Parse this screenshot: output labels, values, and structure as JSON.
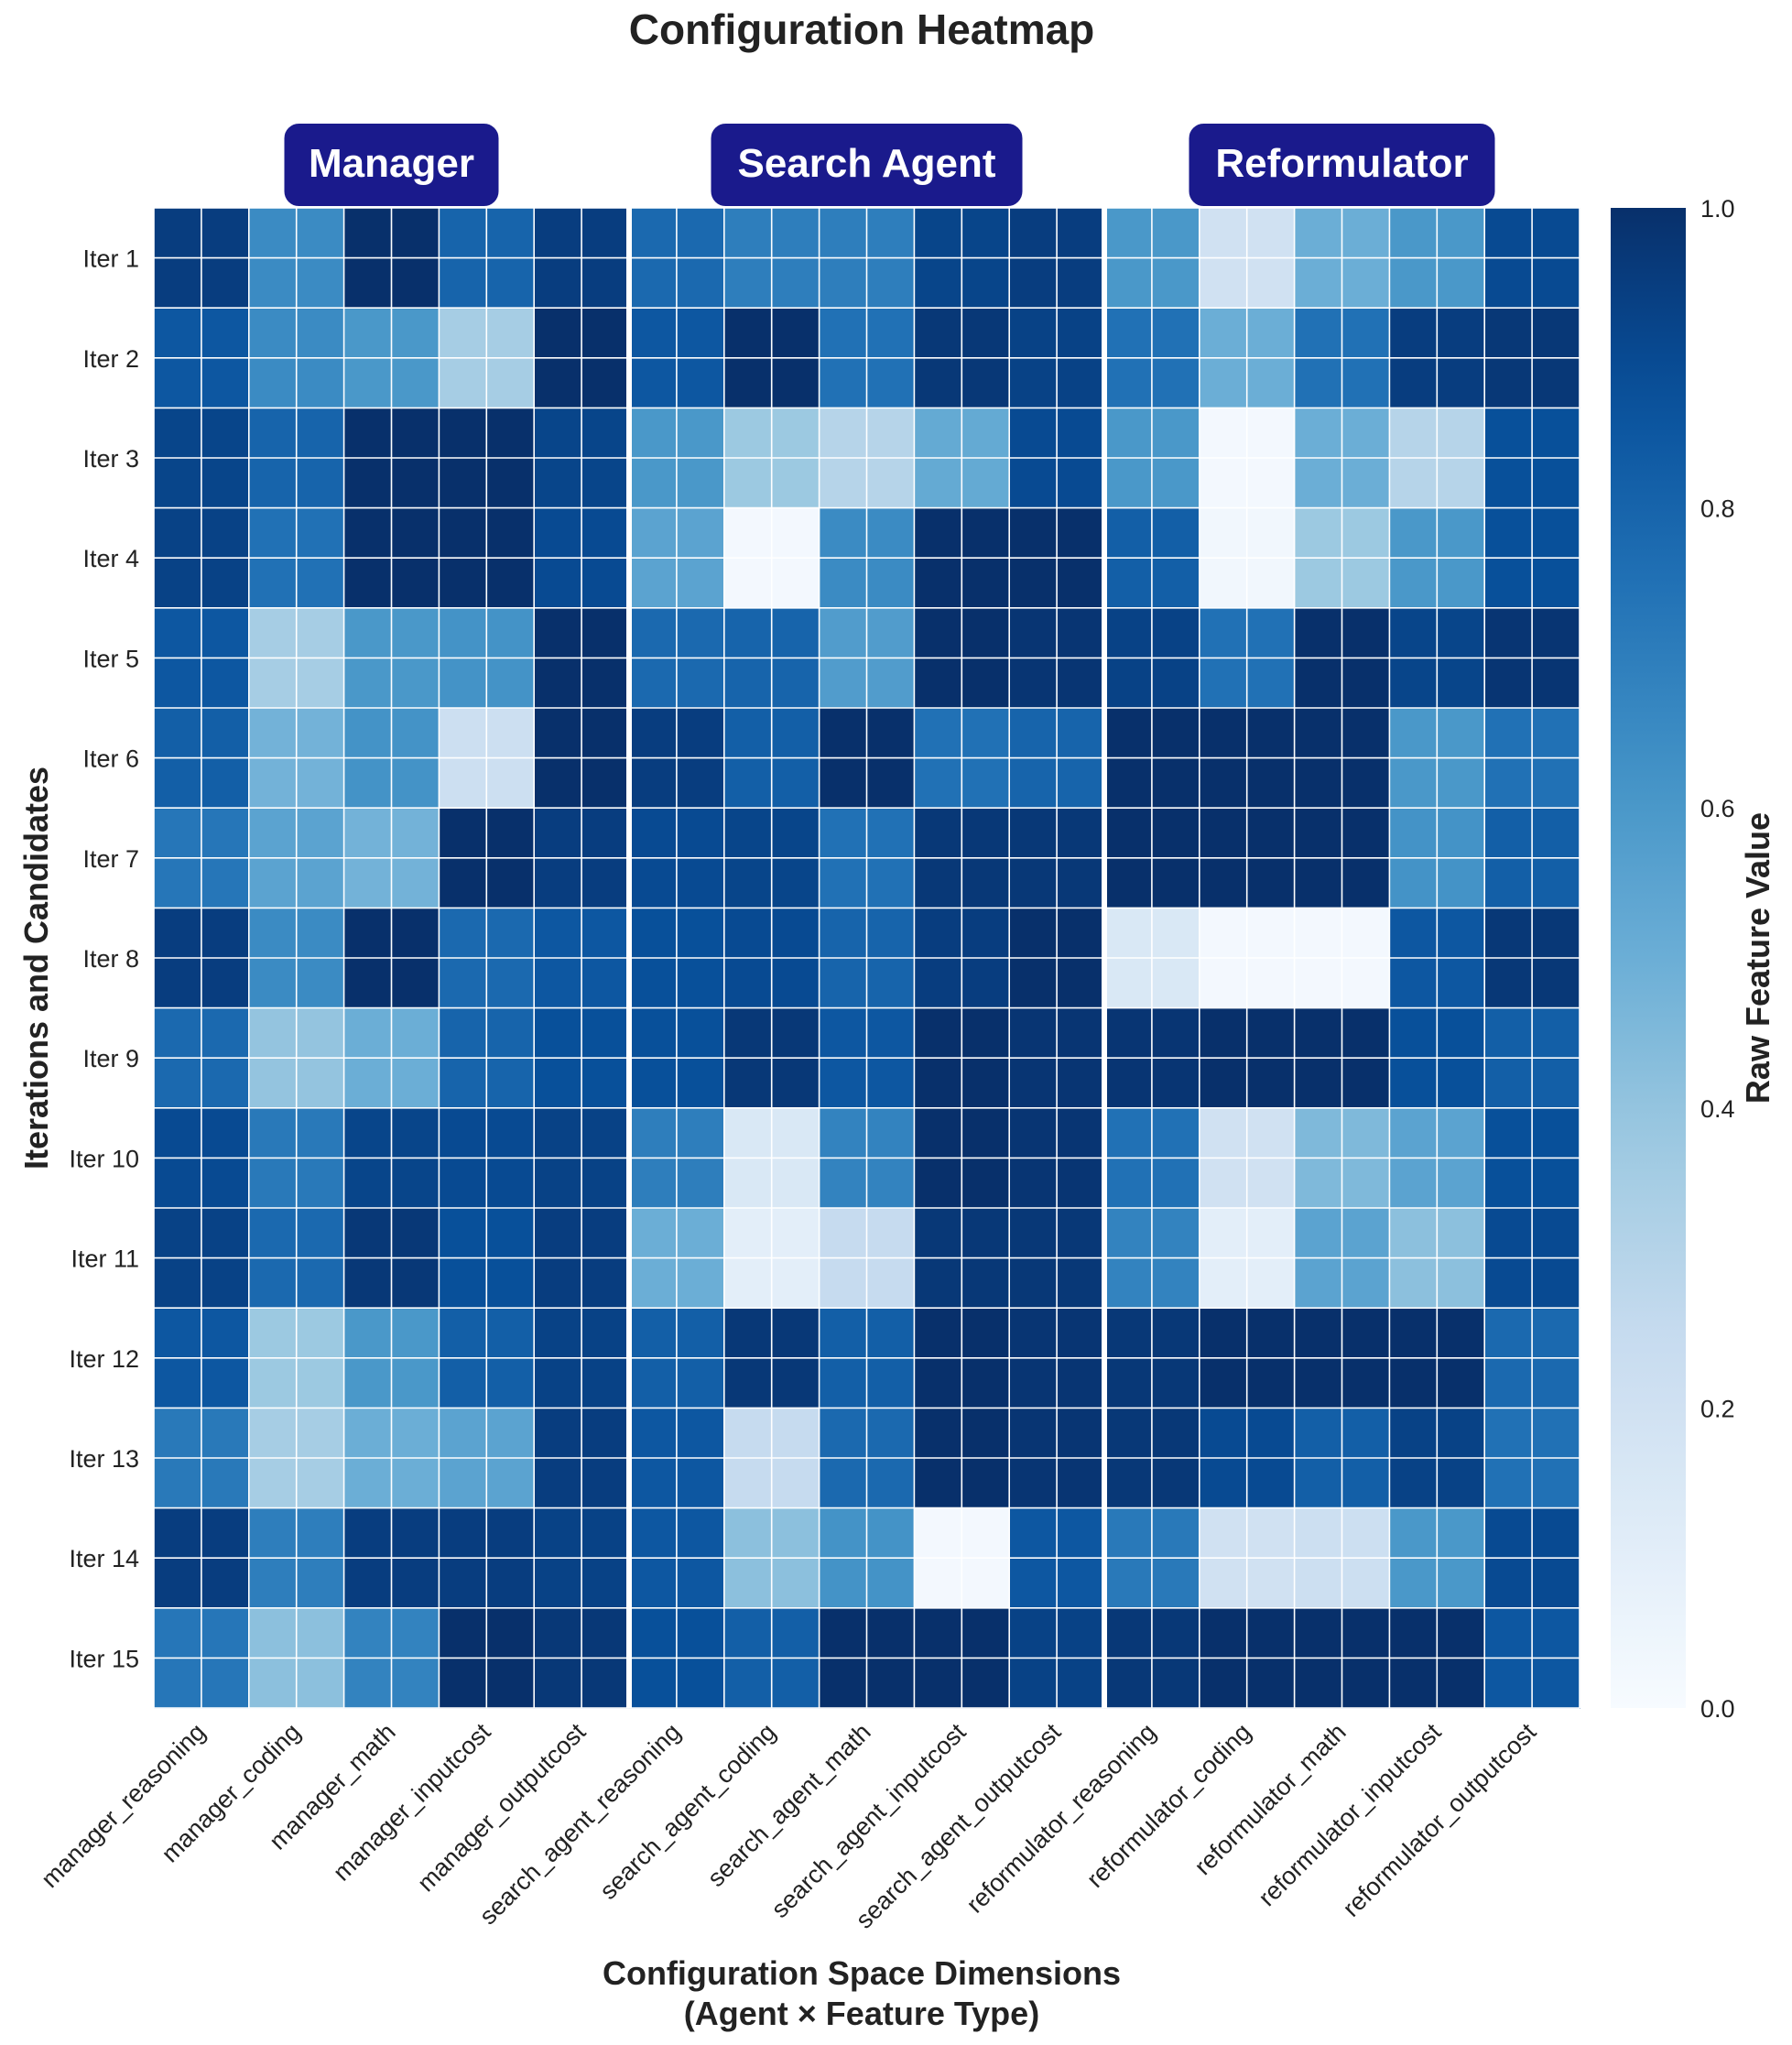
{
  "chart_data": {
    "type": "heatmap",
    "title": "Configuration Heatmap",
    "xlabel": [
      "Configuration Space Dimensions",
      "(Agent × Feature Type)"
    ],
    "ylabel": "Iterations and Candidates",
    "colorbar_label": "Raw Feature Value",
    "colorbar_ticks": [
      "0.0",
      "0.2",
      "0.4",
      "0.6",
      "0.8",
      "1.0"
    ],
    "value_range": [
      0,
      1
    ],
    "colormap": "Blues",
    "group_labels": [
      "Manager",
      "Search Agent",
      "Reformulator"
    ],
    "group_color": "#1a1a8c",
    "columns": [
      "manager_reasoning",
      "manager_coding",
      "manager_math",
      "manager_inputcost",
      "manager_outputcost",
      "search_agent_reasoning",
      "search_agent_coding",
      "search_agent_math",
      "search_agent_inputcost",
      "search_agent_outputcost",
      "reformulator_reasoning",
      "reformulator_coding",
      "reformulator_math",
      "reformulator_inputcost",
      "reformulator_outputcost"
    ],
    "rows": [
      "Iter 1",
      "Iter 2",
      "Iter 3",
      "Iter 4",
      "Iter 5",
      "Iter 6",
      "Iter 7",
      "Iter 8",
      "Iter 9",
      "Iter 10",
      "Iter 11",
      "Iter 12",
      "Iter 13",
      "Iter 14",
      "Iter 15"
    ],
    "values": [
      [
        0.95,
        0.65,
        1.0,
        0.8,
        0.95,
        0.78,
        0.7,
        0.7,
        0.92,
        0.95,
        0.6,
        0.2,
        0.5,
        0.6,
        0.9
      ],
      [
        0.85,
        0.65,
        0.6,
        0.35,
        1.0,
        0.85,
        1.0,
        0.75,
        0.97,
        0.93,
        0.75,
        0.5,
        0.75,
        0.95,
        0.97
      ],
      [
        0.92,
        0.8,
        1.0,
        1.0,
        0.92,
        0.6,
        0.38,
        0.3,
        0.52,
        0.9,
        0.6,
        0.02,
        0.5,
        0.3,
        0.88
      ],
      [
        0.93,
        0.75,
        1.0,
        1.0,
        0.9,
        0.55,
        0.02,
        0.65,
        1.0,
        1.0,
        0.82,
        0.03,
        0.38,
        0.6,
        0.88
      ],
      [
        0.85,
        0.35,
        0.6,
        0.62,
        1.0,
        0.78,
        0.8,
        0.58,
        1.0,
        0.98,
        0.93,
        0.75,
        1.0,
        0.92,
        0.98
      ],
      [
        0.82,
        0.48,
        0.62,
        0.22,
        1.0,
        0.95,
        0.82,
        1.0,
        0.75,
        0.8,
        1.0,
        1.0,
        1.0,
        0.6,
        0.75
      ],
      [
        0.73,
        0.55,
        0.48,
        1.0,
        0.95,
        0.9,
        0.92,
        0.75,
        0.97,
        0.97,
        1.0,
        1.0,
        1.0,
        0.62,
        0.82
      ],
      [
        0.95,
        0.65,
        1.0,
        0.78,
        0.85,
        0.88,
        0.9,
        0.8,
        0.95,
        1.0,
        0.15,
        0.02,
        0.02,
        0.85,
        0.97
      ],
      [
        0.78,
        0.4,
        0.5,
        0.8,
        0.88,
        0.88,
        0.97,
        0.85,
        1.0,
        0.98,
        0.98,
        1.0,
        1.0,
        0.88,
        0.82
      ],
      [
        0.9,
        0.72,
        0.92,
        0.9,
        0.93,
        0.7,
        0.15,
        0.68,
        1.0,
        0.98,
        0.75,
        0.2,
        0.45,
        0.55,
        0.88
      ],
      [
        0.93,
        0.78,
        0.97,
        0.88,
        0.95,
        0.5,
        0.1,
        0.25,
        0.97,
        0.97,
        0.68,
        0.1,
        0.55,
        0.42,
        0.9
      ],
      [
        0.85,
        0.38,
        0.6,
        0.82,
        0.93,
        0.82,
        0.97,
        0.82,
        1.0,
        0.98,
        0.97,
        1.0,
        1.0,
        1.0,
        0.78
      ],
      [
        0.72,
        0.35,
        0.5,
        0.55,
        0.95,
        0.85,
        0.25,
        0.78,
        1.0,
        0.98,
        0.97,
        0.9,
        0.82,
        0.93,
        0.75
      ],
      [
        0.95,
        0.7,
        0.95,
        0.95,
        0.93,
        0.85,
        0.42,
        0.62,
        0.02,
        0.85,
        0.72,
        0.2,
        0.22,
        0.6,
        0.9
      ],
      [
        0.73,
        0.42,
        0.68,
        1.0,
        0.97,
        0.88,
        0.82,
        1.0,
        1.0,
        0.93,
        0.97,
        1.0,
        1.0,
        1.0,
        0.85
      ]
    ]
  }
}
